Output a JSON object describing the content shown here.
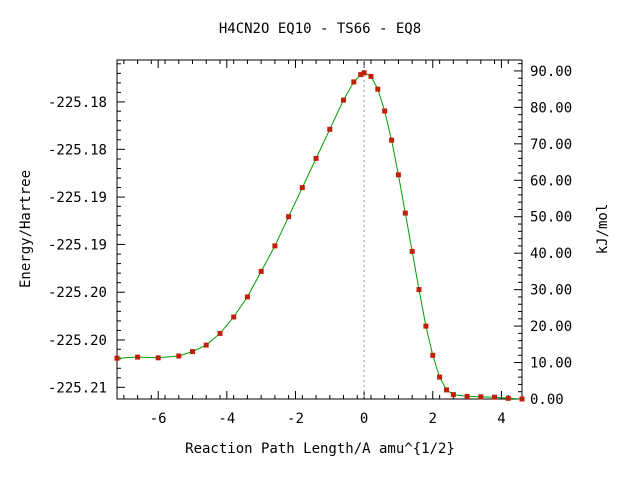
{
  "chart_data": {
    "type": "line",
    "title": "H4CN2O   EQ10 - TS66 - EQ8",
    "xlabel": "Reaction Path Length/A amu^{1/2}",
    "ylabel": "Energy/Hartree",
    "y2label": "kJ/mol",
    "xlim": [
      -7.2,
      4.6
    ],
    "ylim": [
      0,
      93
    ],
    "y2lim": [
      0,
      93
    ],
    "x_ticks": [
      -6,
      -4,
      -2,
      0,
      2,
      4
    ],
    "x_tick_labels": [
      "-6",
      "-4",
      "-2",
      "0",
      "2",
      "4"
    ],
    "y_left_ticks_kj": [
      3.2,
      16.2,
      29.3,
      42.4,
      55.4,
      68.5,
      81.5
    ],
    "y_left_tick_labels": [
      "-225.21",
      "-225.20",
      "-225.20",
      "-225.19",
      "-225.19",
      "-225.18",
      "-225.18"
    ],
    "y_right_ticks": [
      0,
      10,
      20,
      30,
      40,
      50,
      60,
      70,
      80,
      90
    ],
    "y_right_tick_labels": [
      "0.00",
      "10.00",
      "20.00",
      "30.00",
      "40.00",
      "50.00",
      "60.00",
      "70.00",
      "80.00",
      "90.00"
    ],
    "ts_marker_x": 0,
    "grid": false,
    "series": [
      {
        "line_color": "#00a000",
        "marker_color": "#c0200a",
        "x": [
          -7.2,
          -6.6,
          -6.0,
          -5.4,
          -5.0,
          -4.6,
          -4.2,
          -3.8,
          -3.4,
          -3.0,
          -2.6,
          -2.2,
          -1.8,
          -1.4,
          -1.0,
          -0.6,
          -0.3,
          -0.1,
          0.0,
          0.2,
          0.4,
          0.6,
          0.8,
          1.0,
          1.2,
          1.4,
          1.6,
          1.8,
          2.0,
          2.2,
          2.4,
          2.6,
          3.0,
          3.4,
          3.8,
          4.2,
          4.6
        ],
        "y": [
          11.2,
          11.5,
          11.3,
          11.8,
          13.0,
          14.8,
          18.0,
          22.5,
          28.0,
          35.0,
          42.0,
          50.0,
          58.0,
          66.0,
          74.0,
          82.0,
          87.0,
          89.0,
          89.5,
          88.5,
          85.0,
          79.0,
          71.0,
          61.5,
          51.0,
          40.5,
          30.0,
          20.0,
          12.0,
          6.0,
          2.5,
          1.2,
          0.7,
          0.6,
          0.5,
          0.2,
          0.0
        ]
      }
    ]
  }
}
